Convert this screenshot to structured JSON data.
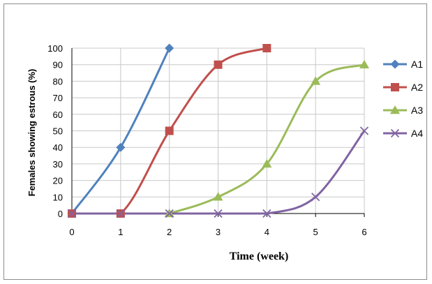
{
  "chart_data": {
    "type": "line",
    "xlabel": "Time (week)",
    "ylabel": "Females showing estrous (%)",
    "x": [
      0,
      1,
      2,
      3,
      4,
      5,
      6
    ],
    "xlim": [
      0,
      6
    ],
    "ylim": [
      0,
      100
    ],
    "yticks": [
      0,
      10,
      20,
      30,
      40,
      50,
      60,
      70,
      80,
      90,
      100
    ],
    "grid": true,
    "smooth": true,
    "legend_position": "right",
    "series": [
      {
        "name": "A1",
        "color": "#4F81BD",
        "marker": "diamond",
        "points": [
          [
            0,
            0
          ],
          [
            1,
            40
          ],
          [
            2,
            100
          ]
        ]
      },
      {
        "name": "A2",
        "color": "#C0504D",
        "marker": "square",
        "points": [
          [
            0,
            0
          ],
          [
            1,
            0
          ],
          [
            2,
            50
          ],
          [
            3,
            90
          ],
          [
            4,
            100
          ]
        ]
      },
      {
        "name": "A3",
        "color": "#9BBB59",
        "marker": "triangle",
        "points": [
          [
            2,
            0
          ],
          [
            3,
            10
          ],
          [
            4,
            30
          ],
          [
            5,
            80
          ],
          [
            6,
            90
          ]
        ]
      },
      {
        "name": "A4",
        "color": "#8064A2",
        "marker": "x",
        "points": [
          [
            0,
            0
          ],
          [
            1,
            0
          ],
          [
            2,
            0
          ],
          [
            3,
            0
          ],
          [
            4,
            0
          ],
          [
            5,
            10
          ],
          [
            6,
            50
          ]
        ]
      }
    ]
  }
}
